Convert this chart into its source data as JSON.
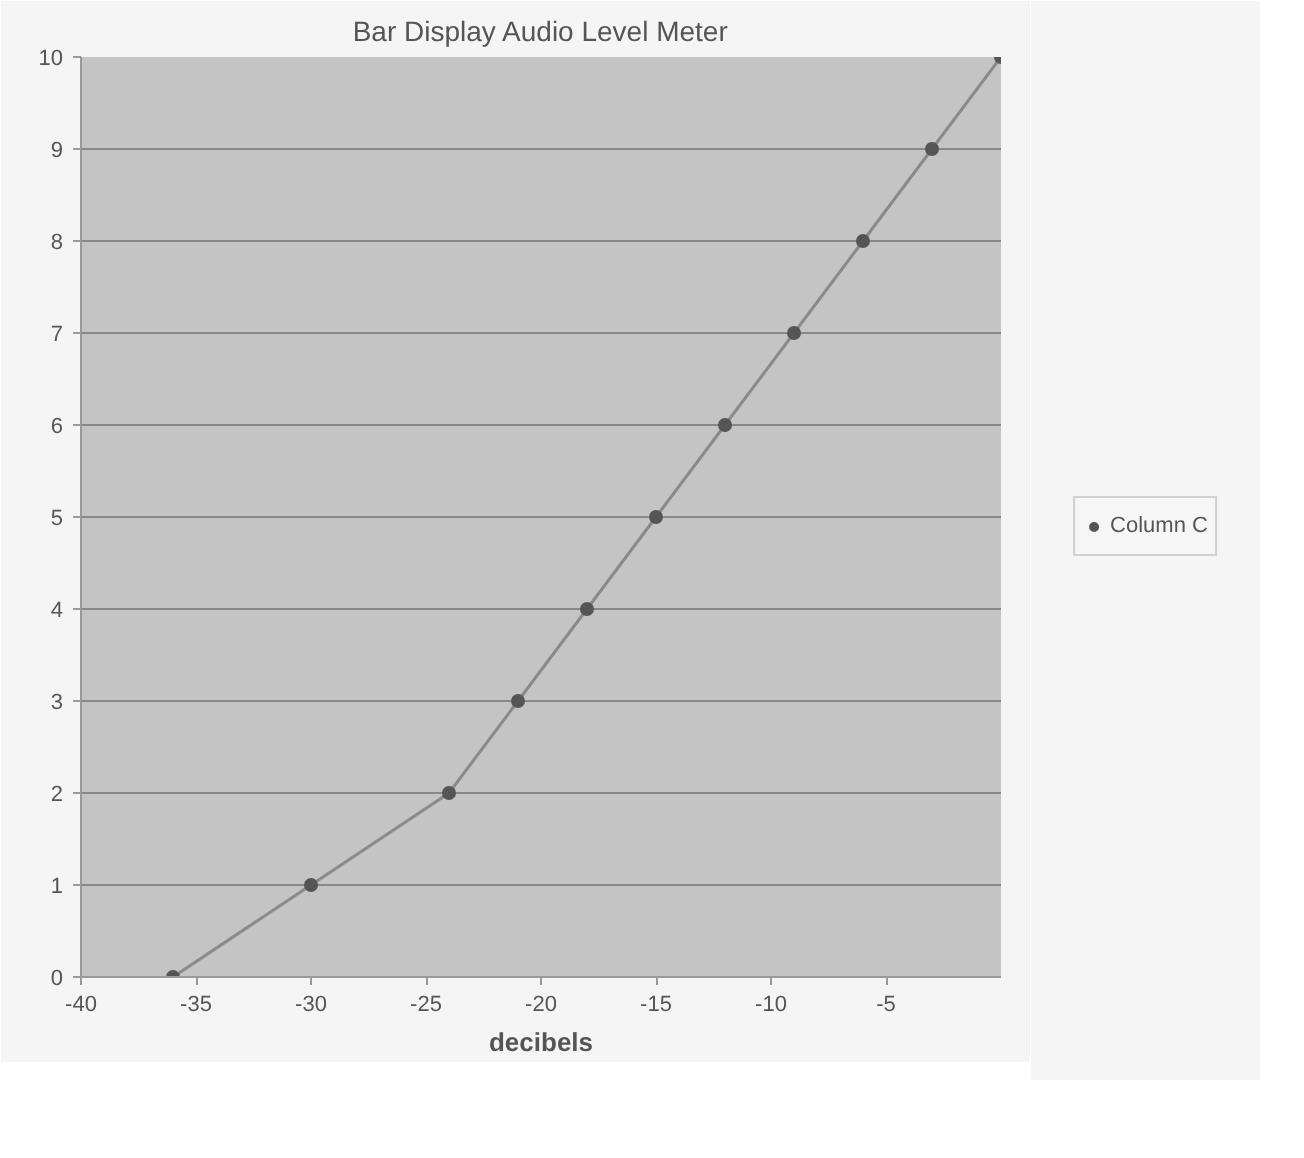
{
  "chart_data": {
    "type": "line",
    "title": "Bar Display Audio Level Meter",
    "xlabel": "decibels",
    "x": [
      -36,
      -30,
      -24,
      -21,
      -18,
      -15,
      -12,
      -9,
      -6,
      -3,
      0
    ],
    "series": [
      {
        "name": "Column C",
        "color": "#555555",
        "values": [
          0,
          1,
          2,
          3,
          4,
          5,
          6,
          7,
          8,
          9,
          10
        ]
      }
    ],
    "xlim": [
      -40,
      0
    ],
    "xticks": [
      -40,
      -35,
      -30,
      -25,
      -20,
      -15,
      -10,
      -5
    ],
    "ylim": [
      0,
      10
    ],
    "yticks": [
      0,
      1,
      2,
      3,
      4,
      5,
      6,
      7,
      8,
      9,
      10
    ],
    "grid": "y",
    "legend": "right",
    "marker": "circle",
    "line_style": "solid"
  }
}
